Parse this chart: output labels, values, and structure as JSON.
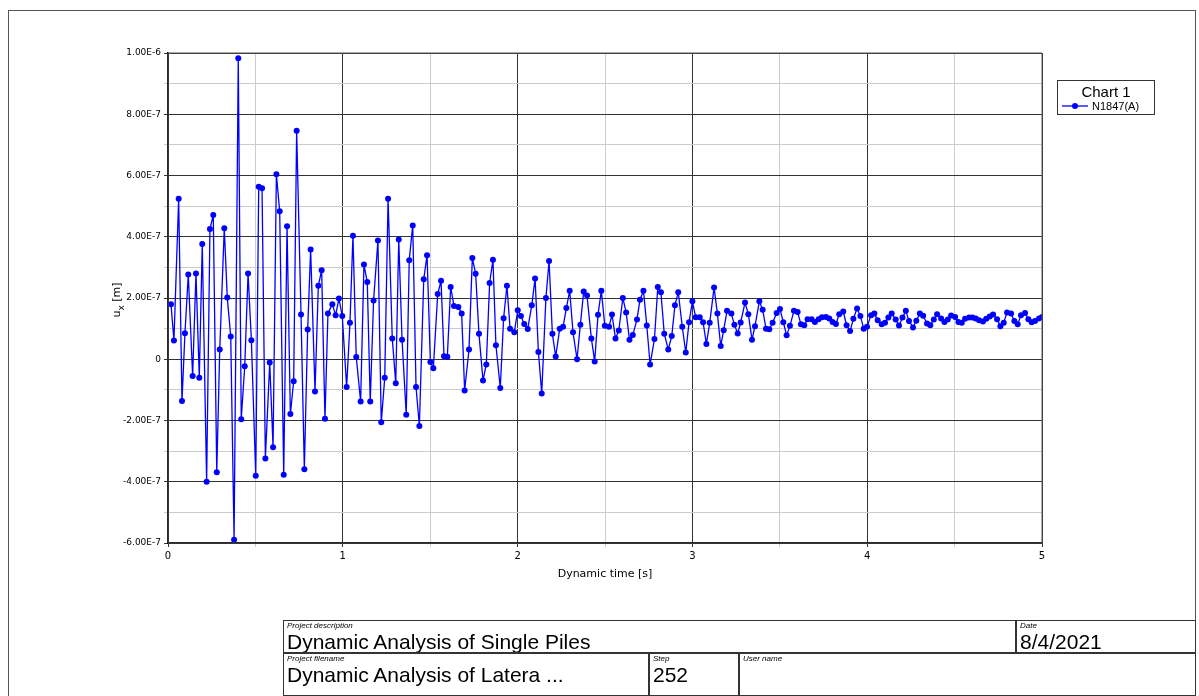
{
  "chart_data": {
    "type": "line",
    "xlabel": "Dynamic time [s]",
    "ylabel": "u$_{x}$ [m]",
    "legend_title": "Chart 1",
    "legend": "top right",
    "grid": true,
    "marker": "circle",
    "xlim": [
      0,
      5
    ],
    "ylim": [
      -6e-07,
      1e-06
    ],
    "xticks": [
      0,
      {
        "value": 0.5,
        "label": null
      },
      1,
      {
        "value": 1.5,
        "label": null
      },
      2,
      {
        "value": 2.5,
        "label": null
      },
      3,
      {
        "value": 3.5,
        "label": null
      },
      4,
      {
        "value": 4.5,
        "label": null
      },
      5
    ],
    "yticks": [
      {
        "value": -6e-07,
        "label": "-6.00E-7"
      },
      {
        "value": -5e-07,
        "label": null
      },
      {
        "value": -4e-07,
        "label": "-4.00E-7"
      },
      {
        "value": -3e-07,
        "label": null
      },
      {
        "value": -2e-07,
        "label": "-2.00E-7"
      },
      {
        "value": -1e-07,
        "label": null
      },
      0,
      {
        "value": 1e-07,
        "label": null
      },
      {
        "value": 2e-07,
        "label": "2.00E-7"
      },
      {
        "value": 3e-07,
        "label": null
      },
      {
        "value": 4e-07,
        "label": "4.00E-7"
      },
      {
        "value": 5e-07,
        "label": null
      },
      {
        "value": 6e-07,
        "label": "6.00E-7"
      },
      {
        "value": 7e-07,
        "label": null
      },
      {
        "value": 8e-07,
        "label": "8.00E-7"
      },
      {
        "value": 9e-07,
        "label": null
      },
      {
        "value": 1e-06,
        "label": "1.00E-6"
      }
    ],
    "series": [
      {
        "name": "N1847(A)",
        "color": "#0000ff",
        "x": [
          0.017,
          0.034,
          0.061,
          0.08,
          0.097,
          0.116,
          0.141,
          0.16,
          0.179,
          0.196,
          0.221,
          0.24,
          0.259,
          0.279,
          0.296,
          0.322,
          0.339,
          0.359,
          0.378,
          0.402,
          0.419,
          0.439,
          0.458,
          0.477,
          0.502,
          0.519,
          0.538,
          0.557,
          0.582,
          0.601,
          0.62,
          0.639,
          0.662,
          0.681,
          0.7,
          0.719,
          0.736,
          0.761,
          0.78,
          0.799,
          0.816,
          0.841,
          0.86,
          0.879,
          0.898,
          0.915,
          0.94,
          0.959,
          0.978,
          0.997,
          1.022,
          1.041,
          1.058,
          1.077,
          1.102,
          1.121,
          1.14,
          1.157,
          1.176,
          1.201,
          1.22,
          1.24,
          1.259,
          1.283,
          1.303,
          1.32,
          1.339,
          1.363,
          1.38,
          1.4,
          1.419,
          1.438,
          1.463,
          1.482,
          1.501,
          1.518,
          1.543,
          1.562,
          1.579,
          1.598,
          1.617,
          1.636,
          1.661,
          1.68,
          1.697,
          1.722,
          1.741,
          1.76,
          1.779,
          1.802,
          1.821,
          1.84,
          1.859,
          1.876,
          1.901,
          1.92,
          1.939,
          1.957,
          1.981,
          2.001,
          2.019,
          2.038,
          2.058,
          2.081,
          2.1,
          2.119,
          2.138,
          2.162,
          2.18,
          2.199,
          2.218,
          2.241,
          2.26,
          2.279,
          2.298,
          2.317,
          2.34,
          2.359,
          2.378,
          2.397,
          2.422,
          2.441,
          2.46,
          2.479,
          2.499,
          2.523,
          2.54,
          2.56,
          2.579,
          2.602,
          2.621,
          2.64,
          2.659,
          2.683,
          2.7,
          2.72,
          2.739,
          2.758,
          2.783,
          2.802,
          2.82,
          2.839,
          2.862,
          2.882,
          2.9,
          2.919,
          2.942,
          2.962,
          2.981,
          3.0,
          3.019,
          3.042,
          3.061,
          3.08,
          3.099,
          3.124,
          3.143,
          3.162,
          3.179,
          3.198,
          3.223,
          3.24,
          3.259,
          3.276,
          3.301,
          3.32,
          3.341,
          3.358,
          3.383,
          3.402,
          3.421,
          3.44,
          3.459,
          3.482,
          3.501,
          3.52,
          3.539,
          3.558,
          3.581,
          3.602,
          3.621,
          3.64,
          3.659,
          3.682,
          3.701,
          3.722,
          3.741,
          3.764,
          3.783,
          3.802,
          3.821,
          3.84,
          3.863,
          3.882,
          3.902,
          3.921,
          3.942,
          3.961,
          3.98,
          3.999,
          4.022,
          4.041,
          4.06,
          4.083,
          4.102,
          4.121,
          4.14,
          4.163,
          4.182,
          4.202,
          4.221,
          4.239,
          4.262,
          4.281,
          4.301,
          4.32,
          4.342,
          4.361,
          4.381,
          4.4,
          4.423,
          4.442,
          4.461,
          4.48,
          4.503,
          4.522,
          4.541,
          4.56,
          4.583,
          4.602,
          4.621,
          4.64,
          4.662,
          4.681,
          4.701,
          4.72,
          4.743,
          4.762,
          4.781,
          4.8,
          4.823,
          4.842,
          4.861,
          4.88,
          4.903,
          4.922,
          4.941,
          4.96,
          4.983,
          5.0
        ],
        "values": [
          1.8e-07,
          6.1e-08,
          5.24e-07,
          -1.36e-07,
          8.5e-08,
          2.77e-07,
          -5.5e-08,
          2.8e-07,
          -6e-08,
          3.76e-07,
          -4e-07,
          4.25e-07,
          4.71e-07,
          -3.69e-07,
          3.2e-08,
          4.28e-07,
          2.02e-07,
          7.4e-08,
          -5.89e-07,
          9.83e-07,
          -1.96e-07,
          -2.3e-08,
          2.8e-07,
          6.2e-08,
          -3.8e-07,
          5.63e-07,
          5.58e-07,
          -3.24e-07,
          -1.1e-08,
          -2.87e-07,
          6.04e-07,
          4.83e-07,
          -3.77e-07,
          4.34e-07,
          -1.79e-07,
          -7.2e-08,
          7.46e-07,
          1.46e-07,
          -3.59e-07,
          9.7e-08,
          3.58e-07,
          -1.05e-07,
          2.4e-07,
          2.91e-07,
          -1.94e-07,
          1.49e-07,
          1.8e-07,
          1.44e-07,
          1.98e-07,
          1.41e-07,
          -9.1e-08,
          1.19e-07,
          4.03e-07,
          7e-09,
          -1.38e-07,
          3.09e-07,
          2.52e-07,
          -1.38e-07,
          1.92e-07,
          3.88e-07,
          -2.06e-07,
          -6e-08,
          5.24e-07,
          6.8e-08,
          -7.8e-08,
          3.91e-07,
          6.4e-08,
          -1.81e-07,
          3.23e-07,
          4.37e-07,
          -9.1e-08,
          -2.18e-07,
          2.61e-07,
          3.4e-07,
          -9e-09,
          -2.9e-08,
          2.13e-07,
          2.56e-07,
          1e-08,
          8e-09,
          2.36e-07,
          1.74e-07,
          1.71e-07,
          1.49e-07,
          -1.02e-07,
          3.2e-08,
          3.31e-07,
          2.79e-07,
          8.3e-08,
          -6.9e-08,
          -1.7e-08,
          2.49e-07,
          3.25e-07,
          4.6e-08,
          -9.4e-08,
          1.34e-07,
          2.4e-07,
          1e-07,
          8.8e-08,
          1.6e-07,
          1.41e-07,
          1.15e-07,
          9.9e-08,
          1.76e-07,
          2.64e-07,
          2.4e-08,
          -1.12e-07,
          2e-07,
          3.21e-07,
          8.3e-08,
          9e-09,
          1e-07,
          1.06e-07,
          1.67e-07,
          2.24e-07,
          8.8e-08,
          0.0,
          1.13e-07,
          2.21e-07,
          2.08e-07,
          6.8e-08,
          -7e-09,
          1.45e-07,
          2.24e-07,
          1.09e-07,
          1.06e-07,
          1.46e-07,
          6.8e-08,
          9.4e-08,
          2e-07,
          1.53e-07,
          6.4e-08,
          7.9e-08,
          1.3e-07,
          1.94e-07,
          2.24e-07,
          1.1e-07,
          -1.7e-08,
          6.6e-08,
          2.36e-07,
          2.19e-07,
          8.3e-08,
          3.2e-08,
          7.6e-08,
          1.76e-07,
          2.19e-07,
          1.06e-07,
          2.2e-08,
          1.21e-07,
          1.89e-07,
          1.37e-07,
          1.37e-07,
          1.21e-07,
          5e-08,
          1.19e-07,
          2.34e-07,
          1.49e-07,
          4.3e-08,
          9.5e-08,
          1.58e-07,
          1.49e-07,
          1.13e-07,
          8.4e-08,
          1.2e-07,
          1.85e-07,
          1.47e-07,
          6.4e-08,
          1.08e-07,
          1.89e-07,
          1.62e-07,
          1e-07,
          9.8e-08,
          1.19e-07,
          1.51e-07,
          1.64e-07,
          1.21e-07,
          7.8e-08,
          1.09e-07,
          1.58e-07,
          1.54e-07,
          1.14e-07,
          1.11e-07,
          1.31e-07,
          1.31e-07,
          1.22e-07,
          1.31e-07,
          1.37e-07,
          1.38e-07,
          1.33e-07,
          1.22e-07,
          1.15e-07,
          1.47e-07,
          1.56e-07,
          1.11e-07,
          9.2e-08,
          1.32e-07,
          1.66e-07,
          1.41e-07,
          1e-07,
          1.06e-07,
          1.44e-07,
          1.49e-07,
          1.27e-07,
          1.14e-07,
          1.19e-07,
          1.36e-07,
          1.49e-07,
          1.3e-07,
          1.1e-07,
          1.36e-07,
          1.58e-07,
          1.25e-07,
          1.04e-07,
          1.26e-07,
          1.49e-07,
          1.42e-07,
          1.17e-07,
          1.11e-07,
          1.3e-07,
          1.47e-07,
          1.33e-07,
          1.22e-07,
          1.3e-07,
          1.43e-07,
          1.38e-07,
          1.22e-07,
          1.19e-07,
          1.32e-07,
          1.36e-07,
          1.36e-07,
          1.33e-07,
          1.27e-07,
          1.23e-07,
          1.32e-07,
          1.4e-07,
          1.46e-07,
          1.31e-07,
          1.08e-07,
          1.19e-07,
          1.53e-07,
          1.49e-07,
          1.25e-07,
          1.14e-07,
          1.44e-07,
          1.51e-07,
          1.31e-07,
          1.21e-07,
          1.25e-07,
          1.33e-07,
          1.38e-07
        ]
      }
    ],
    "annotations": [
      "Project description",
      "Dynamic Analysis of Single Piles",
      "Date",
      "8/4/2021",
      "Project filename",
      "Dynamic Analysis of Latera ...",
      "Step",
      "252",
      "User name"
    ]
  }
}
